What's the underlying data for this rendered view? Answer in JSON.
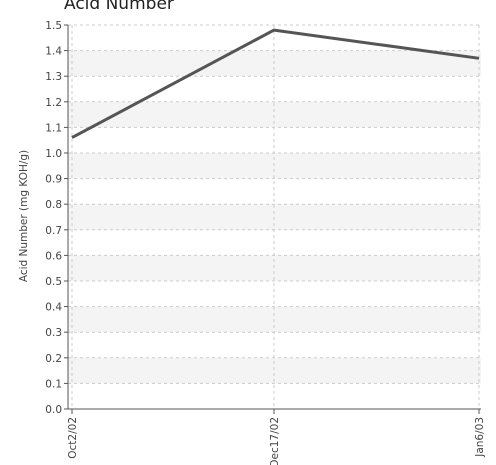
{
  "chart_data": {
    "type": "line",
    "title": "Acid Number",
    "xlabel": "",
    "ylabel": "Acid Number (mg KOH/g)",
    "categories": [
      "Oct2/02",
      "Dec17/02",
      "Jan6/03"
    ],
    "series": [
      {
        "values": [
          1.06,
          1.48,
          1.37
        ]
      }
    ],
    "ylim": [
      0,
      1.5
    ],
    "yticks": [
      "0.0",
      "0.1",
      "0.2",
      "0.3",
      "0.4",
      "0.5",
      "0.6",
      "0.7",
      "0.8",
      "0.9",
      "1.0",
      "1.1",
      "1.2",
      "1.3",
      "1.4",
      "1.5"
    ],
    "grid": true,
    "legend": "none",
    "colors": {
      "line": "#555555",
      "band": "#f4f4f4",
      "grid": "#cccccc",
      "axis": "#555555"
    }
  }
}
